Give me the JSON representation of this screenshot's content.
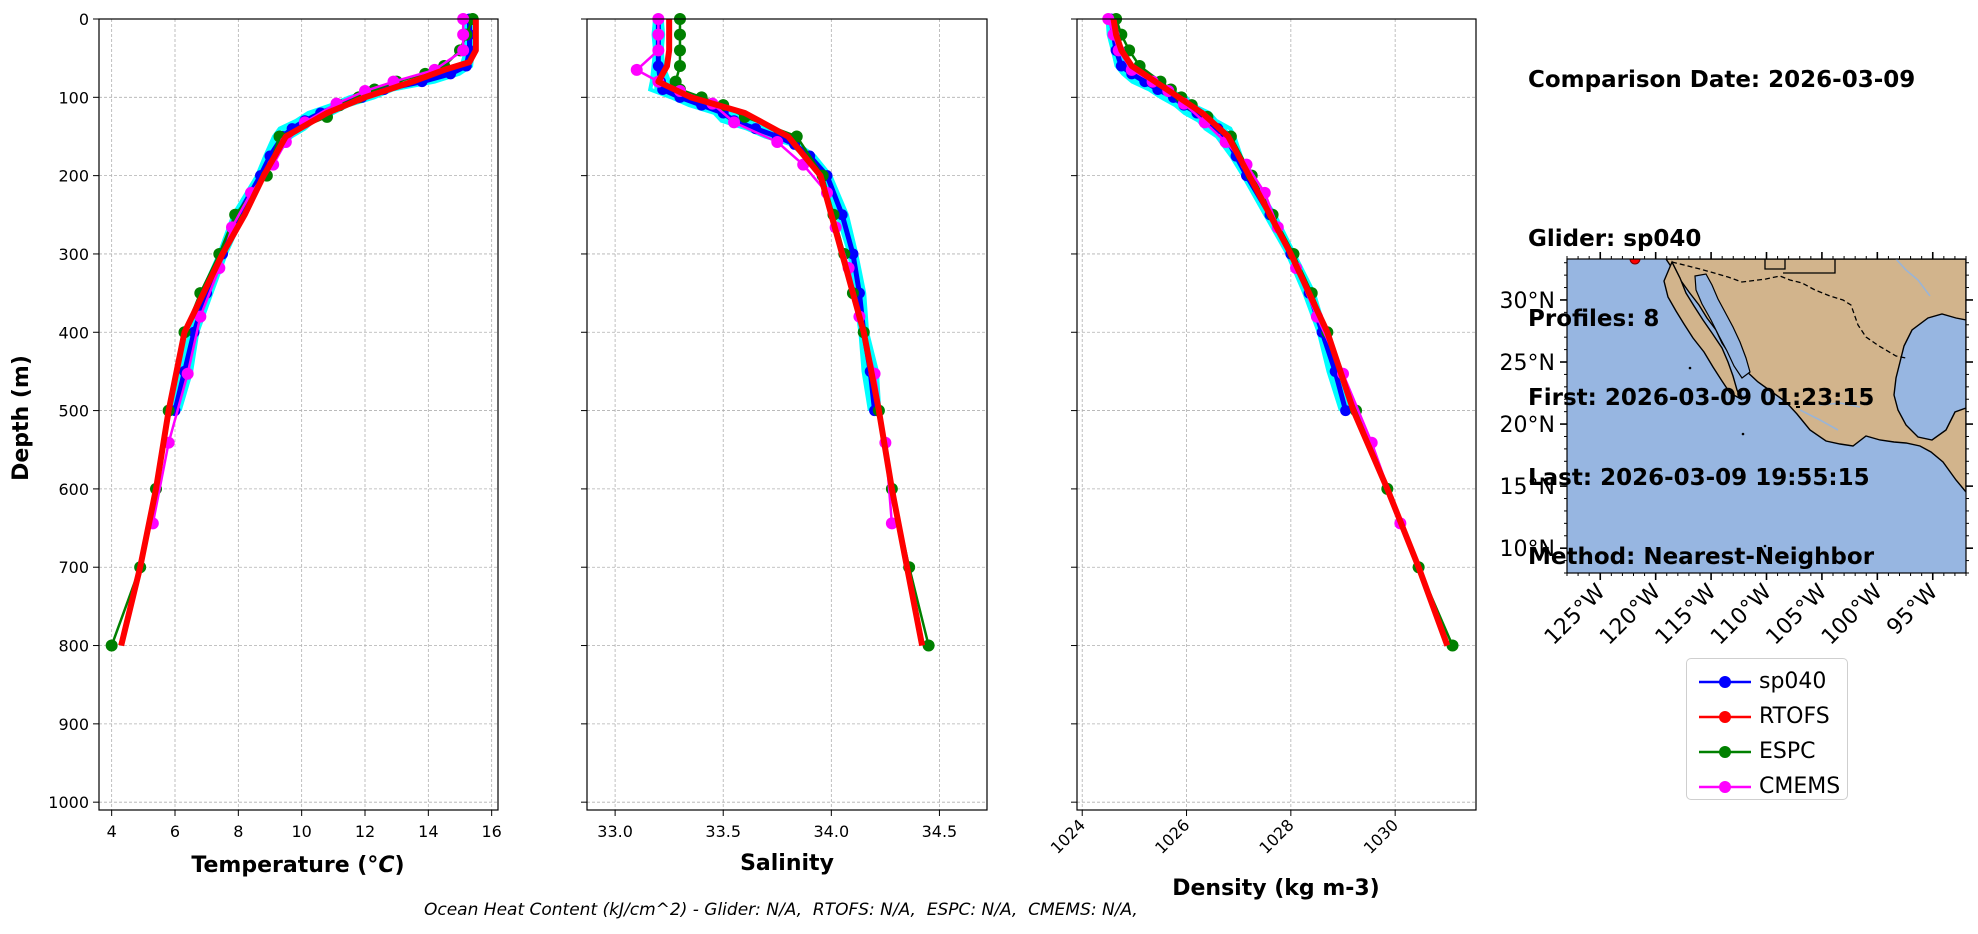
{
  "info": {
    "comparison_date": "Comparison Date: 2026-03-09",
    "glider": "Glider: sp040",
    "profiles": "Profiles: 8",
    "first": "First: 2026-03-09 01:23:15",
    "last": "Last: 2026-03-09 19:55:15",
    "method": "Method: Nearest-Neighbor"
  },
  "footer": "Ocean Heat Content (kJ/cm^2) - Glider: N/A,  RTOFS: N/A,  ESPC: N/A,  CMEMS: N/A,",
  "colors": {
    "sp040": "#0000ff",
    "RTOFS": "#ff0000",
    "ESPC": "#008000",
    "CMEMS": "#ff00ff",
    "glider_profiles": "#00ffff",
    "ocean": "#97b6e1",
    "land": "#d2b48c"
  },
  "legend": [
    {
      "name": "sp040",
      "color": "#0000ff"
    },
    {
      "name": "RTOFS",
      "color": "#ff0000"
    },
    {
      "name": "ESPC",
      "color": "#008000"
    },
    {
      "name": "CMEMS",
      "color": "#ff00ff"
    }
  ],
  "chart_data": [
    {
      "type": "line",
      "xlabel": "Temperature (oC)",
      "ylabel": "Depth (m)",
      "xlim": [
        3.6,
        16.2
      ],
      "ylim": [
        1010,
        0
      ],
      "xticks": [
        4,
        6,
        8,
        10,
        12,
        14,
        16
      ],
      "yticks": [
        0,
        100,
        200,
        300,
        400,
        500,
        600,
        700,
        800,
        900,
        1000
      ],
      "grid": true,
      "series": [
        {
          "name": "sp040",
          "depth": [
            0,
            20,
            40,
            60,
            70,
            80,
            90,
            100,
            110,
            120,
            130,
            140,
            150,
            175,
            200,
            250,
            300,
            350,
            400,
            450,
            500
          ],
          "values": [
            15.3,
            15.3,
            15.3,
            15.2,
            14.7,
            13.8,
            12.6,
            11.9,
            11.2,
            10.6,
            10.1,
            9.7,
            9.4,
            9.0,
            8.7,
            8.0,
            7.5,
            7.0,
            6.6,
            6.3,
            6.0
          ]
        },
        {
          "name": "RTOFS",
          "depth": [
            0,
            20,
            40,
            55,
            65,
            80,
            100,
            120,
            150,
            200,
            250,
            300,
            400,
            500,
            600,
            700,
            800
          ],
          "values": [
            15.5,
            15.5,
            15.5,
            15.3,
            14.5,
            13.5,
            12.0,
            10.8,
            9.5,
            8.8,
            8.2,
            7.5,
            6.3,
            5.8,
            5.4,
            4.9,
            4.3
          ]
        },
        {
          "name": "ESPC",
          "depth": [
            0,
            20,
            40,
            60,
            70,
            80,
            90,
            100,
            110,
            125,
            150,
            200,
            250,
            300,
            350,
            400,
            500,
            600,
            700,
            800
          ],
          "values": [
            15.4,
            15.2,
            15.0,
            14.5,
            13.9,
            13.0,
            12.3,
            11.8,
            11.2,
            10.8,
            9.3,
            8.9,
            7.9,
            7.4,
            6.8,
            6.3,
            5.8,
            5.4,
            4.9,
            4.0
          ]
        },
        {
          "name": "CMEMS",
          "depth": [
            0,
            20,
            40,
            65,
            80,
            92,
            108,
            132,
            157,
            186,
            222,
            266,
            318,
            380,
            453,
            541,
            644
          ],
          "values": [
            15.1,
            15.1,
            15.1,
            14.2,
            12.9,
            12.0,
            11.1,
            10.1,
            9.5,
            9.1,
            8.4,
            7.8,
            7.4,
            6.8,
            6.4,
            5.8,
            5.3
          ]
        }
      ]
    },
    {
      "type": "line",
      "xlabel": "Salinity",
      "ylabel": "",
      "xlim": [
        32.87,
        34.72
      ],
      "ylim": [
        1010,
        0
      ],
      "xticks": [
        33.0,
        33.5,
        34.0,
        34.5
      ],
      "grid": true,
      "series": [
        {
          "name": "sp040",
          "depth": [
            0,
            20,
            40,
            60,
            80,
            90,
            100,
            110,
            120,
            130,
            140,
            150,
            160,
            175,
            200,
            250,
            300,
            350,
            400,
            450,
            500
          ],
          "values": [
            33.2,
            33.2,
            33.2,
            33.2,
            33.21,
            33.22,
            33.3,
            33.4,
            33.5,
            33.55,
            33.65,
            33.75,
            33.83,
            33.9,
            33.98,
            34.05,
            34.1,
            34.13,
            34.15,
            34.18,
            34.2
          ]
        },
        {
          "name": "RTOFS",
          "depth": [
            0,
            20,
            40,
            60,
            70,
            80,
            100,
            120,
            150,
            200,
            250,
            300,
            400,
            500,
            600,
            700,
            800
          ],
          "values": [
            33.25,
            33.25,
            33.25,
            33.24,
            33.22,
            33.2,
            33.35,
            33.6,
            33.8,
            33.95,
            34.0,
            34.05,
            34.15,
            34.22,
            34.28,
            34.35,
            34.42
          ]
        },
        {
          "name": "ESPC",
          "depth": [
            0,
            20,
            40,
            60,
            80,
            90,
            100,
            110,
            125,
            150,
            200,
            250,
            300,
            350,
            400,
            500,
            600,
            700,
            800
          ],
          "values": [
            33.3,
            33.3,
            33.3,
            33.3,
            33.28,
            33.3,
            33.4,
            33.5,
            33.6,
            33.84,
            33.96,
            34.01,
            34.06,
            34.1,
            34.15,
            34.22,
            34.28,
            34.36,
            34.45
          ]
        },
        {
          "name": "CMEMS",
          "depth": [
            0,
            20,
            40,
            65,
            80,
            92,
            108,
            132,
            157,
            186,
            222,
            266,
            318,
            380,
            453,
            541,
            644
          ],
          "values": [
            33.2,
            33.2,
            33.2,
            33.1,
            33.2,
            33.3,
            33.45,
            33.55,
            33.75,
            33.87,
            33.98,
            34.02,
            34.08,
            34.13,
            34.2,
            34.25,
            34.28
          ]
        }
      ]
    },
    {
      "type": "line",
      "xlabel": "Density (kg m-3)",
      "ylabel": "",
      "xlim": [
        1023.9,
        1031.55
      ],
      "ylim": [
        1010,
        0
      ],
      "xticks": [
        1024,
        1026,
        1028,
        1030
      ],
      "grid": true,
      "series": [
        {
          "name": "sp040",
          "depth": [
            0,
            20,
            40,
            60,
            70,
            80,
            90,
            100,
            110,
            120,
            130,
            140,
            150,
            175,
            200,
            250,
            300,
            350,
            400,
            450,
            500
          ],
          "values": [
            1024.55,
            1024.6,
            1024.65,
            1024.75,
            1024.95,
            1025.2,
            1025.45,
            1025.75,
            1025.95,
            1026.2,
            1026.4,
            1026.6,
            1026.75,
            1026.95,
            1027.15,
            1027.6,
            1028.0,
            1028.35,
            1028.6,
            1028.85,
            1029.05
          ]
        },
        {
          "name": "RTOFS",
          "depth": [
            0,
            20,
            40,
            60,
            80,
            100,
            120,
            150,
            200,
            250,
            300,
            400,
            500,
            600,
            700,
            800
          ],
          "values": [
            1024.6,
            1024.65,
            1024.75,
            1024.95,
            1025.4,
            1025.85,
            1026.3,
            1026.8,
            1027.2,
            1027.6,
            1028.0,
            1028.7,
            1029.2,
            1029.85,
            1030.45,
            1031.0
          ]
        },
        {
          "name": "ESPC",
          "depth": [
            0,
            20,
            40,
            60,
            80,
            90,
            100,
            110,
            125,
            150,
            200,
            250,
            300,
            350,
            400,
            500,
            600,
            700,
            800
          ],
          "values": [
            1024.65,
            1024.75,
            1024.9,
            1025.1,
            1025.5,
            1025.7,
            1025.9,
            1026.1,
            1026.4,
            1026.85,
            1027.25,
            1027.65,
            1028.05,
            1028.4,
            1028.7,
            1029.25,
            1029.85,
            1030.45,
            1031.1
          ]
        },
        {
          "name": "CMEMS",
          "depth": [
            0,
            20,
            40,
            65,
            80,
            92,
            108,
            132,
            157,
            186,
            222,
            266,
            318,
            380,
            453,
            541,
            644
          ],
          "values": [
            1024.5,
            1024.6,
            1024.7,
            1024.95,
            1025.35,
            1025.65,
            1025.95,
            1026.35,
            1026.75,
            1027.15,
            1027.5,
            1027.75,
            1028.1,
            1028.5,
            1029.0,
            1029.55,
            1030.1
          ]
        }
      ]
    }
  ],
  "map": {
    "lon_ticks": [
      "125°W",
      "120°W",
      "115°W",
      "110°W",
      "105°W",
      "100°W",
      "95°W"
    ],
    "lat_ticks": [
      "30°N",
      "25°N",
      "20°N",
      "15°N",
      "10°N"
    ],
    "lon_range": [
      -128,
      -92
    ],
    "lat_range": [
      8,
      33.3
    ],
    "glider_position": {
      "lon": -122,
      "lat": 33
    }
  }
}
